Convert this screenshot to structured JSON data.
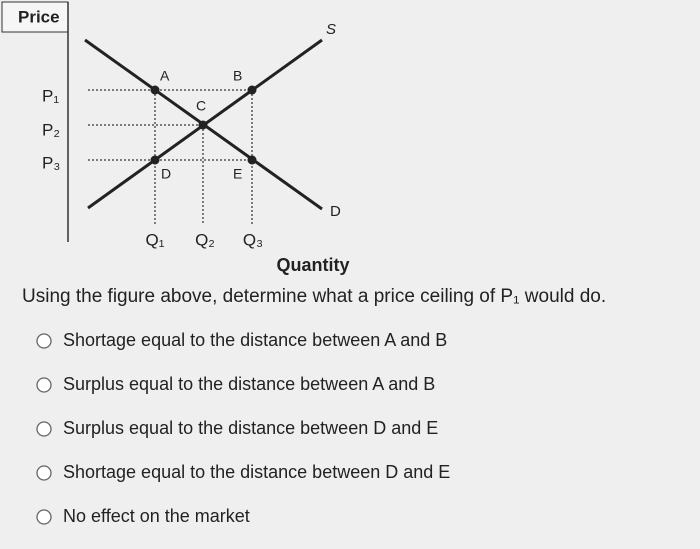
{
  "diagram": {
    "y_axis_label": "Price",
    "price_labels": [
      "P₁",
      "P₂",
      "P₃"
    ],
    "quantity_labels": [
      "Q₁",
      "Q₂",
      "Q₃"
    ],
    "x_axis_label": "Quantity",
    "supply_label": "S",
    "demand_label": "D",
    "point_labels": {
      "a": "A",
      "b": "B",
      "c": "C",
      "d": "D",
      "e": "E"
    }
  },
  "question": "Using the figure above, determine what a price ceiling of P₁ would do.",
  "options": [
    "Shortage equal to the distance between A and B",
    "Surplus equal to the distance between A and B",
    "Surplus equal to the distance between D and E",
    "Shortage equal to the distance between D and E",
    "No effect on the market"
  ]
}
